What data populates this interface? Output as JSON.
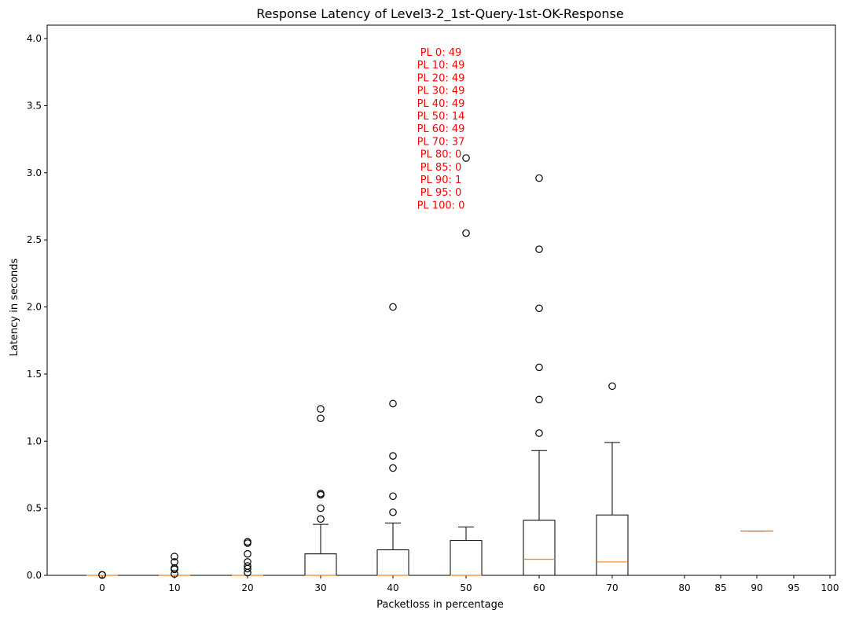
{
  "chart_data": {
    "type": "box",
    "title": "Response Latency of Level3-2_1st-Query-1st-OK-Response",
    "xlabel": "Packetloss in percentage",
    "ylabel": "Latency in seconds",
    "ylim": [
      0,
      4.1
    ],
    "yticks": [
      "0.0",
      "0.5",
      "1.0",
      "1.5",
      "2.0",
      "2.5",
      "3.0",
      "3.5",
      "4.0"
    ],
    "grid": false,
    "colors": {
      "box": "#000000",
      "median": "#ff7f0e",
      "annotation": "#ff0000",
      "flier": "#000000"
    },
    "categories": [
      "0",
      "10",
      "20",
      "30",
      "40",
      "50",
      "60",
      "70",
      "80",
      "85",
      "90",
      "95",
      "100"
    ],
    "boxes": [
      {
        "category": "0",
        "q1": 0.0,
        "median": 0.0,
        "q3": 0.0,
        "whisker_low": 0.0,
        "whisker_high": 0.0,
        "fliers": [
          0.002,
          0.004
        ]
      },
      {
        "category": "10",
        "q1": 0.0,
        "median": 0.0,
        "q3": 0.0,
        "whisker_low": 0.0,
        "whisker_high": 0.0,
        "fliers": [
          0.01,
          0.045,
          0.055,
          0.1,
          0.14
        ]
      },
      {
        "category": "20",
        "q1": 0.0,
        "median": 0.0,
        "q3": 0.0,
        "whisker_low": 0.0,
        "whisker_high": 0.0,
        "fliers": [
          0.02,
          0.05,
          0.07,
          0.1,
          0.16,
          0.24,
          0.25
        ]
      },
      {
        "category": "30",
        "q1": 0.0,
        "median": 0.0,
        "q3": 0.16,
        "whisker_low": 0.0,
        "whisker_high": 0.38,
        "fliers": [
          0.42,
          0.5,
          0.6,
          0.61,
          1.17,
          1.24
        ]
      },
      {
        "category": "40",
        "q1": 0.0,
        "median": 0.0,
        "q3": 0.19,
        "whisker_low": 0.0,
        "whisker_high": 0.39,
        "fliers": [
          0.47,
          0.59,
          0.8,
          0.89,
          1.28,
          2.0
        ]
      },
      {
        "category": "50",
        "q1": 0.0,
        "median": 0.0,
        "q3": 0.26,
        "whisker_low": 0.0,
        "whisker_high": 0.36,
        "fliers": [
          2.55,
          3.11
        ]
      },
      {
        "category": "60",
        "q1": 0.0,
        "median": 0.12,
        "q3": 0.41,
        "whisker_low": 0.0,
        "whisker_high": 0.93,
        "fliers": [
          1.06,
          1.31,
          1.55,
          1.99,
          2.43,
          2.96
        ]
      },
      {
        "category": "70",
        "q1": 0.0,
        "median": 0.1,
        "q3": 0.45,
        "whisker_low": 0.0,
        "whisker_high": 0.99,
        "fliers": [
          1.41
        ]
      },
      {
        "category": "90",
        "q1": 0.33,
        "median": 0.33,
        "q3": 0.33,
        "whisker_low": 0.33,
        "whisker_high": 0.33,
        "fliers": []
      }
    ],
    "annotation_lines": [
      "PL 0: 49",
      "PL 10: 49",
      "PL 20: 49",
      "PL 30: 49",
      "PL 40: 49",
      "PL 50: 14",
      "PL 60: 49",
      "PL 70: 37",
      "PL 80: 0",
      "PL 85: 0",
      "PL 90: 1",
      "PL 95: 0",
      "PL 100: 0"
    ]
  }
}
